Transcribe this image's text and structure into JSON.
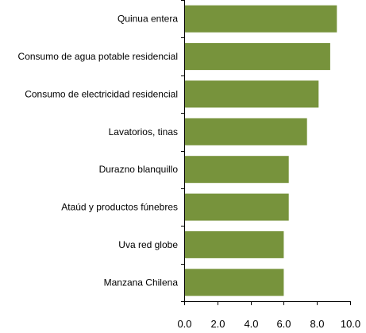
{
  "chart_data": {
    "type": "bar",
    "orientation": "horizontal",
    "categories": [
      "Quinua entera",
      "Consumo de agua  potable residencial",
      "Consumo de electricidad residencial",
      "Lavatorios,  tinas",
      "Durazno  blanquillo",
      "Ataúd y productos  fúnebres",
      "Uva red globe",
      "Manzana Chilena"
    ],
    "values": [
      9.2,
      8.8,
      8.1,
      7.4,
      6.3,
      6.3,
      6.0,
      6.0
    ],
    "xlim": [
      0,
      10
    ],
    "ticks": [
      0,
      2,
      4,
      6,
      8,
      10
    ],
    "tick_labels": [
      "0.0",
      "2.0",
      "4.0",
      "6.0",
      "8.0",
      "10.0"
    ],
    "bar_color": "#77933c",
    "grid": false,
    "legend": "none"
  }
}
